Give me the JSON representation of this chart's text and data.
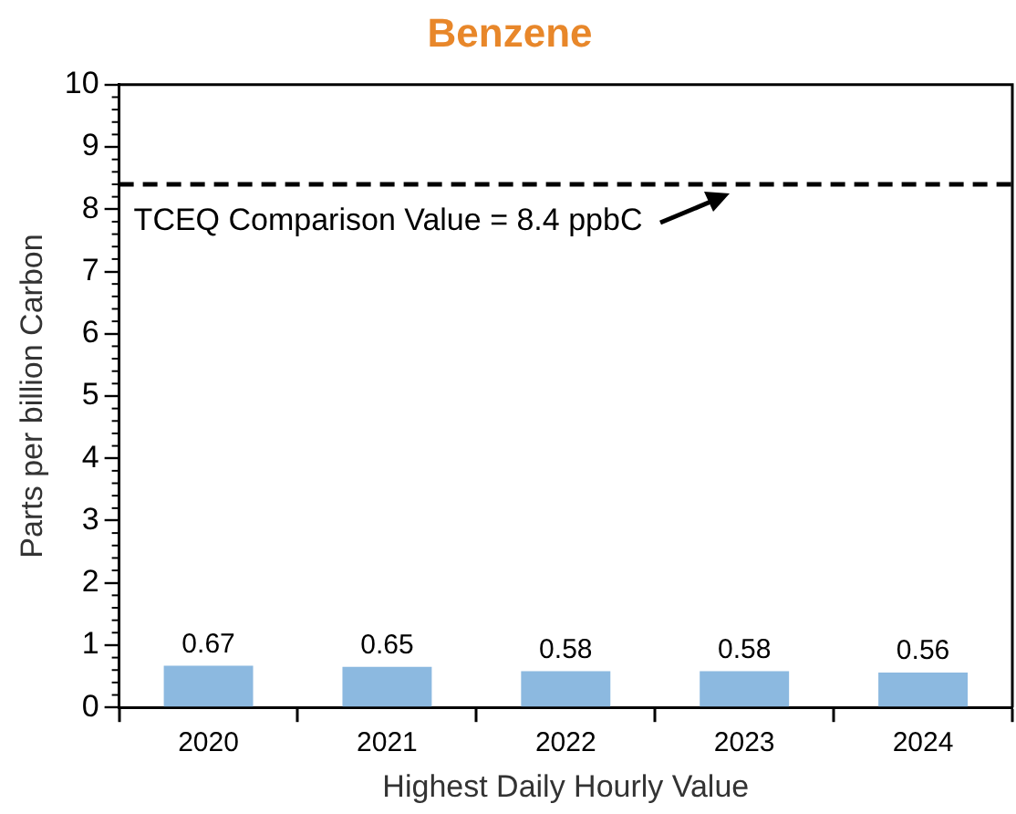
{
  "chart_data": {
    "type": "bar",
    "title": "Benzene",
    "xlabel": "Highest Daily Hourly Value",
    "ylabel": "Parts per billion Carbon",
    "categories": [
      "2020",
      "2021",
      "2022",
      "2023",
      "2024"
    ],
    "values": [
      0.67,
      0.65,
      0.58,
      0.58,
      0.56
    ],
    "color": "#8cb9e0",
    "ylim": [
      0,
      10
    ],
    "yticks": [
      0,
      1,
      2,
      3,
      4,
      5,
      6,
      7,
      8,
      9,
      10
    ],
    "grid": false,
    "data_labels": true,
    "ref_lines": [
      {
        "axis": "y",
        "value": 8.4,
        "label": "TCEQ Comparison Value = 8.4 ppbC",
        "color": "#000000",
        "line_style": "dashed"
      }
    ]
  }
}
